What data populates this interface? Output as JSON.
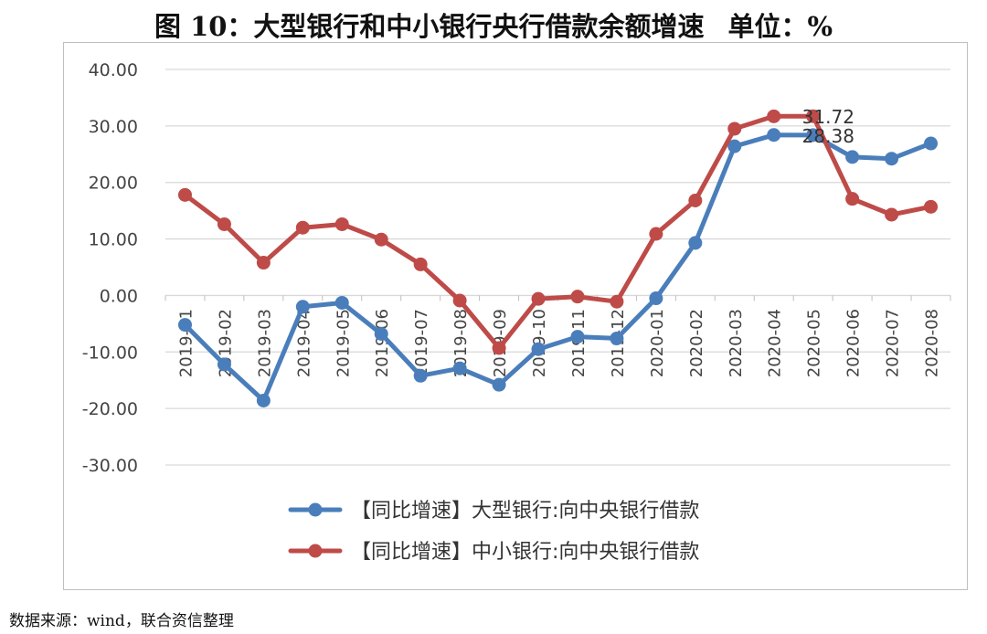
{
  "title": "图 10：大型银行和中小银行央行借款余额增速",
  "unit_label": "单位：%",
  "source": "数据来源：wind，联合资信整理",
  "chart_data": {
    "type": "line",
    "categories": [
      "2019-01",
      "2019-02",
      "2019-03",
      "2019-04",
      "2019-05",
      "2019-06",
      "2019-07",
      "2019-08",
      "2019-09",
      "2019-10",
      "2019-11",
      "2019-12",
      "2020-01",
      "2020-02",
      "2020-03",
      "2020-04",
      "2020-05",
      "2020-06",
      "2020-07",
      "2020-08"
    ],
    "yticks": [
      "40.00",
      "30.00",
      "20.00",
      "10.00",
      "0.00",
      "-10.00",
      "-20.00",
      "-30.00"
    ],
    "ylim": [
      -30,
      40
    ],
    "grid": true,
    "legend_position": "bottom",
    "series": [
      {
        "name": "【同比增速】大型银行:向中央银行借款",
        "color": "#4A7EBB",
        "values": [
          -5.2,
          -12.2,
          -18.6,
          -2.0,
          -1.3,
          -6.8,
          -14.2,
          -12.9,
          -15.8,
          -9.5,
          -7.3,
          -7.6,
          -0.5,
          9.3,
          26.4,
          28.4,
          28.38,
          24.5,
          24.2,
          26.9
        ]
      },
      {
        "name": "【同比增速】中小银行:向中央银行借款",
        "color": "#BE4B48",
        "values": [
          17.8,
          12.6,
          5.8,
          12.0,
          12.6,
          9.9,
          5.5,
          -0.9,
          -9.3,
          -0.6,
          -0.2,
          -1.1,
          10.9,
          16.8,
          29.5,
          31.7,
          31.72,
          17.1,
          14.3,
          15.7
        ]
      }
    ],
    "annotations": [
      {
        "series": 1,
        "index": 16,
        "text": "31.72"
      },
      {
        "series": 0,
        "index": 16,
        "text": "28.38"
      }
    ]
  }
}
